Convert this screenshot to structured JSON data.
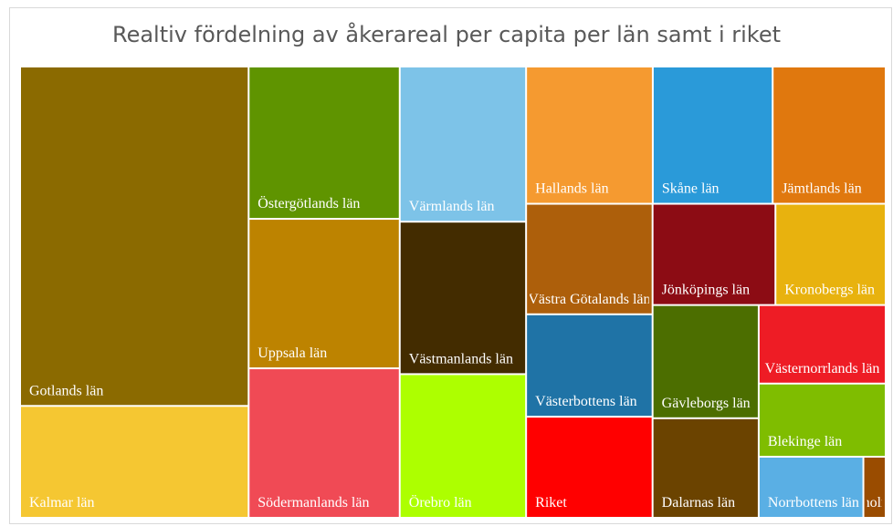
{
  "chart_data": {
    "type": "treemap",
    "title": "Realtiv fördelning av åkerareal per capita per län samt i riket",
    "categories": [
      "Gotlands län",
      "Kalmar län",
      "Östergötlands län",
      "Uppsala län",
      "Södermanlands län",
      "Värmlands län",
      "Västmanlands län",
      "Örebro län",
      "Hallands län",
      "Skåne län",
      "Jämtlands län",
      "Västra Götalands län",
      "Västerbottens län",
      "Riket",
      "Jönköpings län",
      "Kronobergs län",
      "Gävleborgs län",
      "Dalarnas län",
      "Västernorrlands län",
      "Blekinge län",
      "Norrbottens län",
      "Stockholms län"
    ],
    "values": [
      91,
      30,
      27,
      26.5,
      26.5,
      23,
      22.6,
      21.3,
      20.4,
      19.3,
      18.2,
      16.4,
      15.2,
      15,
      14.6,
      13.1,
      14.1,
      12.4,
      11.7,
      10.9,
      7.5,
      1.6
    ],
    "colors": [
      "#8b6a00",
      "#f5c732",
      "#5f9400",
      "#bd8300",
      "#f04a55",
      "#7dc3e8",
      "#432c00",
      "#adff00",
      "#f59a30",
      "#2a9ad9",
      "#e0780e",
      "#ad5f0b",
      "#1f73a6",
      "#ff0000",
      "#8c0c14",
      "#e8b20e",
      "#4c6e00",
      "#6b4300",
      "#ee1c25",
      "#7fbd00",
      "#5aafe4",
      "#9a4c00"
    ]
  }
}
